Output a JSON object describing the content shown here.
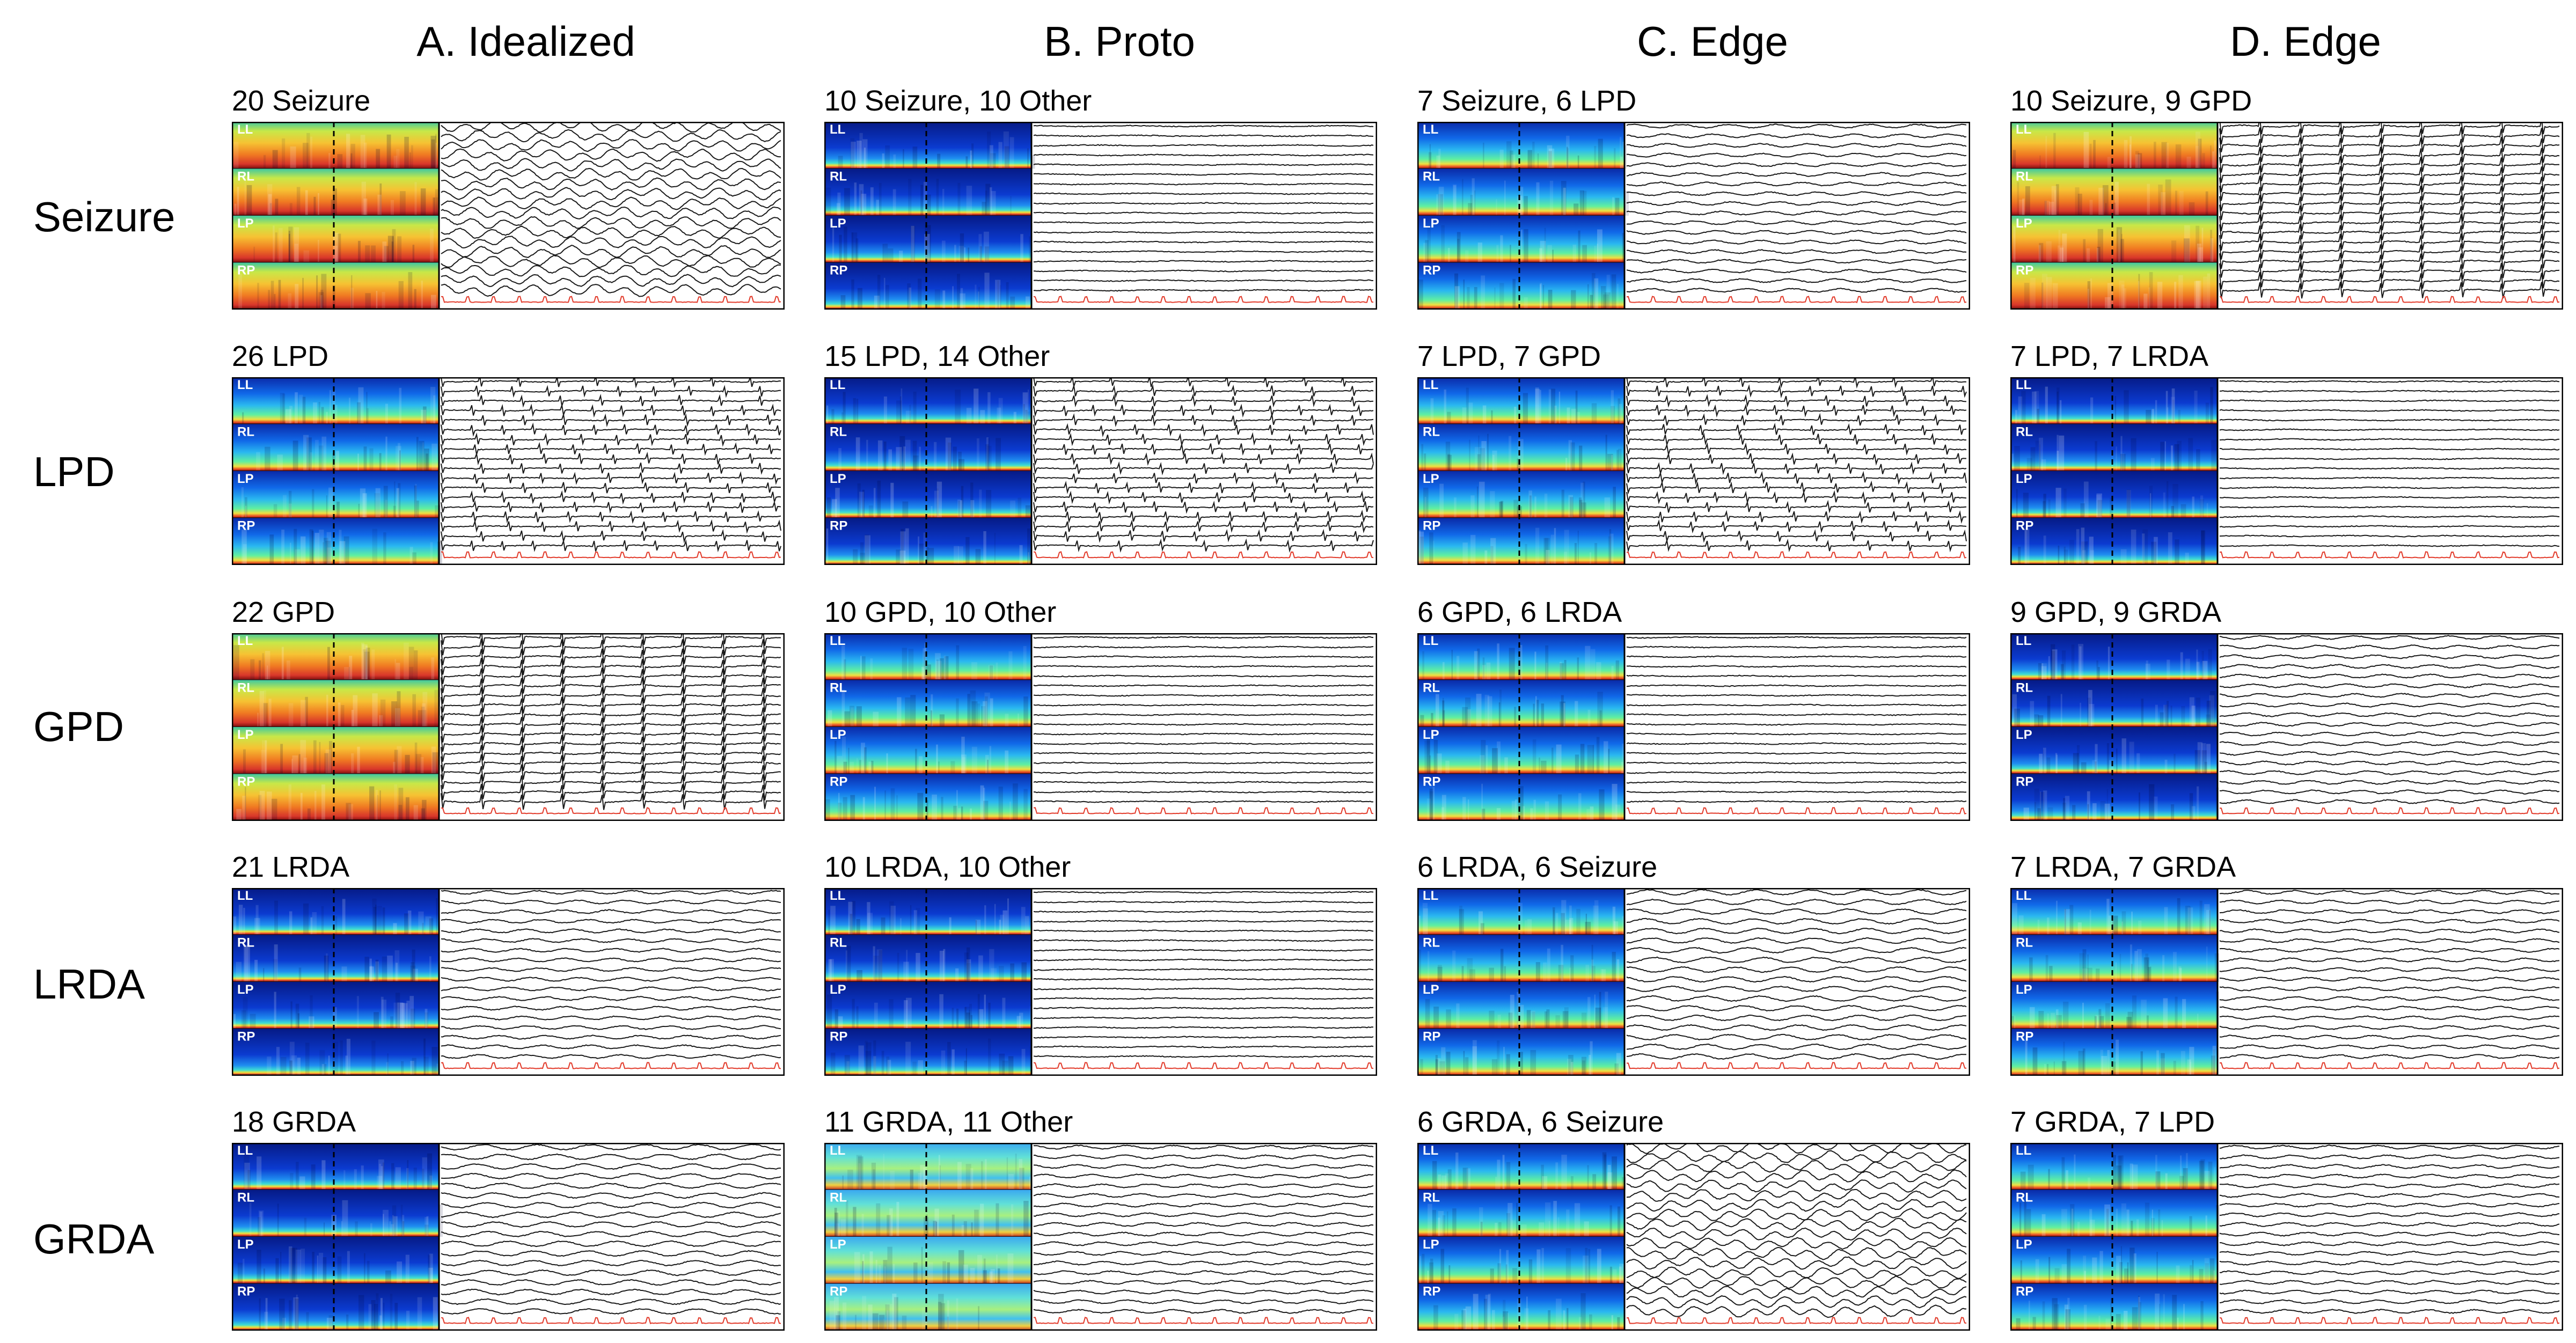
{
  "columns": [
    {
      "title": "A. Idealized"
    },
    {
      "title": "B. Proto"
    },
    {
      "title": "C. Edge"
    },
    {
      "title": "D. Edge"
    }
  ],
  "rows": [
    {
      "label": "Seizure"
    },
    {
      "label": "LPD"
    },
    {
      "label": "GPD"
    },
    {
      "label": "LRDA"
    },
    {
      "label": "GRDA"
    }
  ],
  "channel_labels": [
    "LL",
    "RL",
    "LP",
    "RP"
  ],
  "panels": [
    [
      {
        "caption": "20 Seizure",
        "spec": "hot",
        "trace": "highamp"
      },
      {
        "caption": "10 Seizure, 10 Other",
        "spec": "cold",
        "trace": "flat"
      },
      {
        "caption": "7 Seizure, 6 LPD",
        "spec": "warm",
        "trace": "medium"
      },
      {
        "caption": "10 Seizure, 9 GPD",
        "spec": "hot",
        "trace": "spiky"
      }
    ],
    [
      {
        "caption": "26 LPD",
        "spec": "warm",
        "trace": "periodic"
      },
      {
        "caption": "15 LPD, 14 Other",
        "spec": "cold",
        "trace": "periodic"
      },
      {
        "caption": "7 LPD, 7 GPD",
        "spec": "warm",
        "trace": "periodic"
      },
      {
        "caption": "7 LPD, 7 LRDA",
        "spec": "cold",
        "trace": "flat"
      }
    ],
    [
      {
        "caption": "22 GPD",
        "spec": "hot",
        "trace": "spiky"
      },
      {
        "caption": "10 GPD, 10 Other",
        "spec": "warm",
        "trace": "flat"
      },
      {
        "caption": "6 GPD, 6 LRDA",
        "spec": "warm",
        "trace": "flat"
      },
      {
        "caption": "9 GPD, 9 GRDA",
        "spec": "cold",
        "trace": "medium"
      }
    ],
    [
      {
        "caption": "21 LRDA",
        "spec": "cold",
        "trace": "medium"
      },
      {
        "caption": "10 LRDA, 10 Other",
        "spec": "cold",
        "trace": "flat"
      },
      {
        "caption": "6 LRDA, 6 Seizure",
        "spec": "warm",
        "trace": "rhythmic"
      },
      {
        "caption": "7 LRDA, 7 GRDA",
        "spec": "warm",
        "trace": "medium"
      }
    ],
    [
      {
        "caption": "18 GRDA",
        "spec": "cold",
        "trace": "rhythmic"
      },
      {
        "caption": "11 GRDA, 11 Other",
        "spec": "bright",
        "trace": "medium"
      },
      {
        "caption": "6 GRDA, 6 Seizure",
        "spec": "warm",
        "trace": "highamp"
      },
      {
        "caption": "7 GRDA, 7 LPD",
        "spec": "warm",
        "trace": "medium"
      }
    ]
  ],
  "colors": {
    "spectrogram_base": "#0a1a9c",
    "spectrogram_band": "#d8362a",
    "eeg_trace": "#1a1a1a",
    "ecg_trace": "#e23a2a"
  }
}
